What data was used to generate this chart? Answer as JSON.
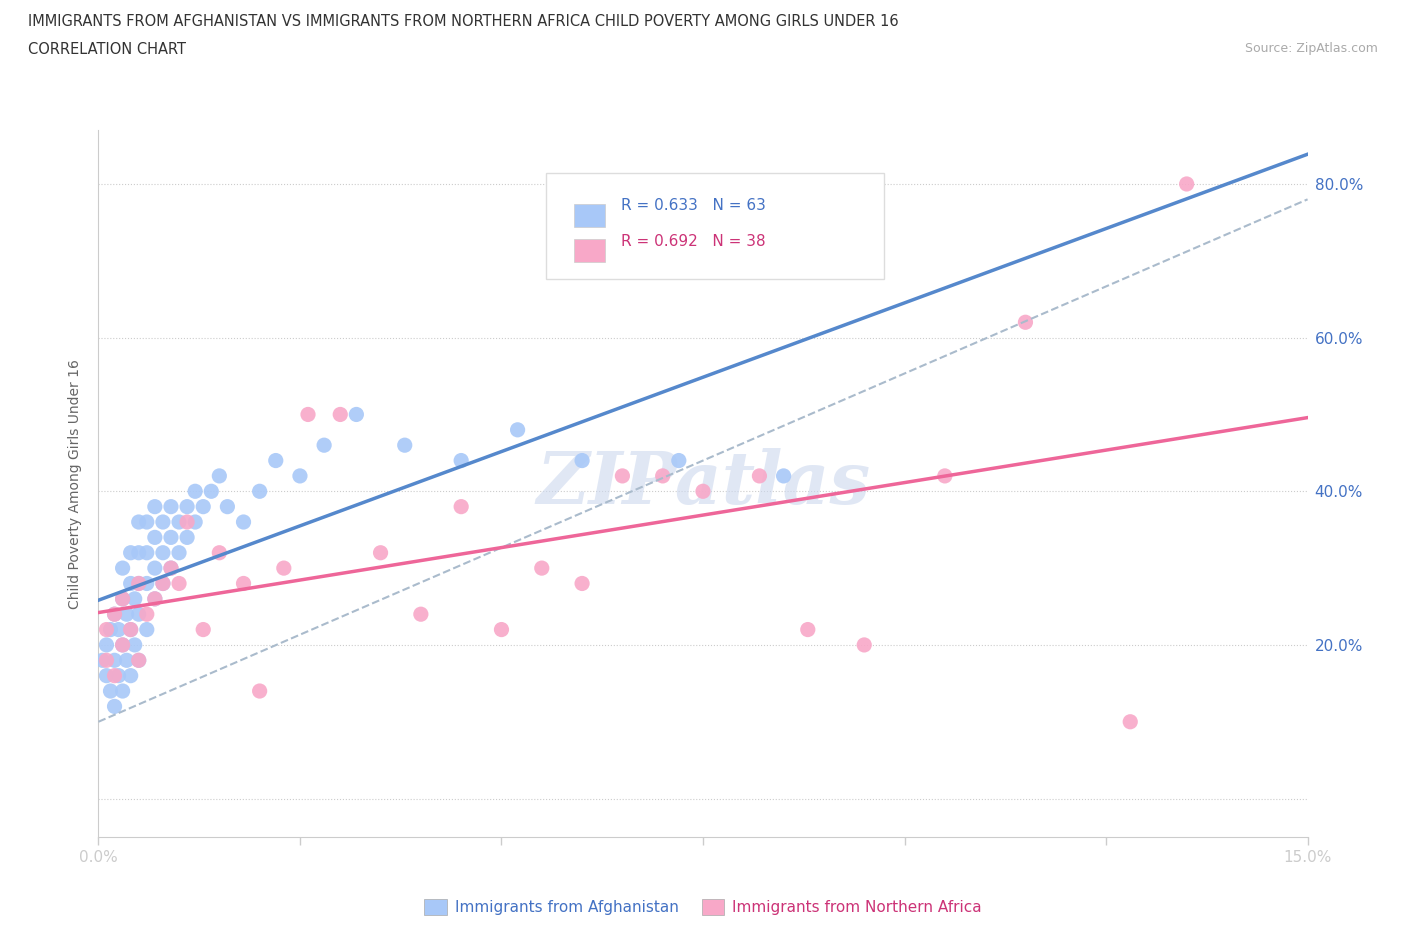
{
  "title_line1": "IMMIGRANTS FROM AFGHANISTAN VS IMMIGRANTS FROM NORTHERN AFRICA CHILD POVERTY AMONG GIRLS UNDER 16",
  "title_line2": "CORRELATION CHART",
  "source_text": "Source: ZipAtlas.com",
  "ylabel": "Child Poverty Among Girls Under 16",
  "xlim": [
    0.0,
    0.15
  ],
  "ylim": [
    -0.05,
    0.87
  ],
  "yticks": [
    0.0,
    0.2,
    0.4,
    0.6,
    0.8
  ],
  "ytick_labels": [
    "",
    "20.0%",
    "40.0%",
    "60.0%",
    "80.0%"
  ],
  "xticks": [
    0.0,
    0.025,
    0.05,
    0.075,
    0.1,
    0.125,
    0.15
  ],
  "xtick_labels": [
    "0.0%",
    "",
    "",
    "",
    "",
    "",
    "15.0%"
  ],
  "color_afghanistan": "#a8c8f8",
  "color_northern_africa": "#f8a8c8",
  "line_color_afghanistan": "#5588cc",
  "line_color_northern_africa": "#ee6699",
  "line_color_dashed": "#aabbcc",
  "watermark_color": "#ccd8ee",
  "R_afghanistan": "R = 0.633",
  "N_afghanistan": "N = 63",
  "R_northern_africa": "R = 0.692",
  "N_northern_africa": "N = 38",
  "legend_label_afghanistan": "Immigrants from Afghanistan",
  "legend_label_northern_africa": "Immigrants from Northern Africa",
  "afghanistan_x": [
    0.0005,
    0.001,
    0.001,
    0.0015,
    0.0015,
    0.002,
    0.002,
    0.002,
    0.0025,
    0.0025,
    0.003,
    0.003,
    0.003,
    0.003,
    0.0035,
    0.0035,
    0.004,
    0.004,
    0.004,
    0.004,
    0.0045,
    0.0045,
    0.005,
    0.005,
    0.005,
    0.005,
    0.005,
    0.006,
    0.006,
    0.006,
    0.006,
    0.007,
    0.007,
    0.007,
    0.007,
    0.008,
    0.008,
    0.008,
    0.009,
    0.009,
    0.009,
    0.01,
    0.01,
    0.011,
    0.011,
    0.012,
    0.012,
    0.013,
    0.014,
    0.015,
    0.016,
    0.018,
    0.02,
    0.022,
    0.025,
    0.028,
    0.032,
    0.038,
    0.045,
    0.052,
    0.06,
    0.072,
    0.085
  ],
  "afghanistan_y": [
    0.18,
    0.16,
    0.2,
    0.14,
    0.22,
    0.12,
    0.18,
    0.24,
    0.16,
    0.22,
    0.14,
    0.2,
    0.26,
    0.3,
    0.18,
    0.24,
    0.16,
    0.22,
    0.28,
    0.32,
    0.2,
    0.26,
    0.18,
    0.24,
    0.28,
    0.32,
    0.36,
    0.22,
    0.28,
    0.32,
    0.36,
    0.26,
    0.3,
    0.34,
    0.38,
    0.28,
    0.32,
    0.36,
    0.3,
    0.34,
    0.38,
    0.32,
    0.36,
    0.34,
    0.38,
    0.36,
    0.4,
    0.38,
    0.4,
    0.42,
    0.38,
    0.36,
    0.4,
    0.44,
    0.42,
    0.46,
    0.5,
    0.46,
    0.44,
    0.48,
    0.44,
    0.44,
    0.42
  ],
  "northern_africa_x": [
    0.001,
    0.001,
    0.002,
    0.002,
    0.003,
    0.003,
    0.004,
    0.005,
    0.005,
    0.006,
    0.007,
    0.008,
    0.009,
    0.01,
    0.011,
    0.013,
    0.015,
    0.018,
    0.02,
    0.023,
    0.026,
    0.03,
    0.035,
    0.04,
    0.045,
    0.05,
    0.055,
    0.06,
    0.065,
    0.07,
    0.075,
    0.082,
    0.088,
    0.095,
    0.105,
    0.115,
    0.128,
    0.135
  ],
  "northern_africa_y": [
    0.18,
    0.22,
    0.16,
    0.24,
    0.2,
    0.26,
    0.22,
    0.18,
    0.28,
    0.24,
    0.26,
    0.28,
    0.3,
    0.28,
    0.36,
    0.22,
    0.32,
    0.28,
    0.14,
    0.3,
    0.5,
    0.5,
    0.32,
    0.24,
    0.38,
    0.22,
    0.3,
    0.28,
    0.42,
    0.42,
    0.4,
    0.42,
    0.22,
    0.2,
    0.42,
    0.62,
    0.1,
    0.8
  ]
}
